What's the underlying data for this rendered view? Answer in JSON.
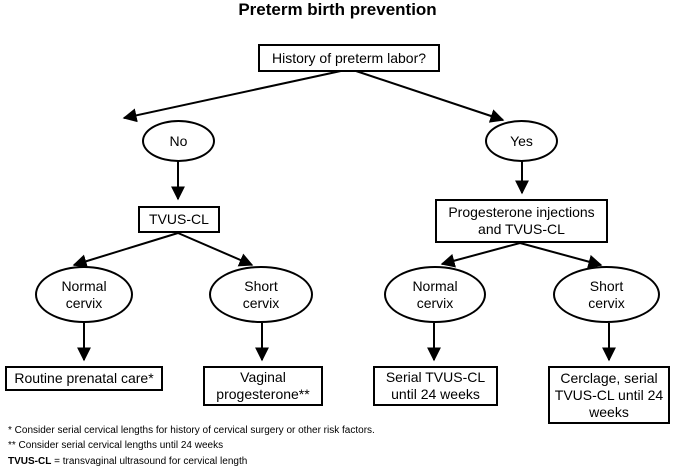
{
  "title": "Preterm birth prevention",
  "root": "History of preterm labor?",
  "no_branch": {
    "label": "No",
    "test": "TVUS-CL",
    "normal": {
      "label": "Normal cervix",
      "action": "Routine prenatal care*"
    },
    "short": {
      "label": "Short cervix",
      "action": "Vaginal progesterone**"
    }
  },
  "yes_branch": {
    "label": "Yes",
    "test": "Progesterone injections and TVUS-CL",
    "normal": {
      "label": "Normal cervix",
      "action": "Serial TVUS-CL until 24 weeks"
    },
    "short": {
      "label": "Short cervix",
      "action": "Cerclage, serial TVUS-CL until 24 weeks"
    }
  },
  "footnotes": {
    "one_star": "* Consider serial  cervical lengths for history of cervical surgery or other risk factors.",
    "two_star": "** Consider serial cervical lengths until 24 weeks",
    "abbrev_term": "TVUS-CL",
    "abbrev_def": " = transvaginal ultrasound for cervical length"
  }
}
